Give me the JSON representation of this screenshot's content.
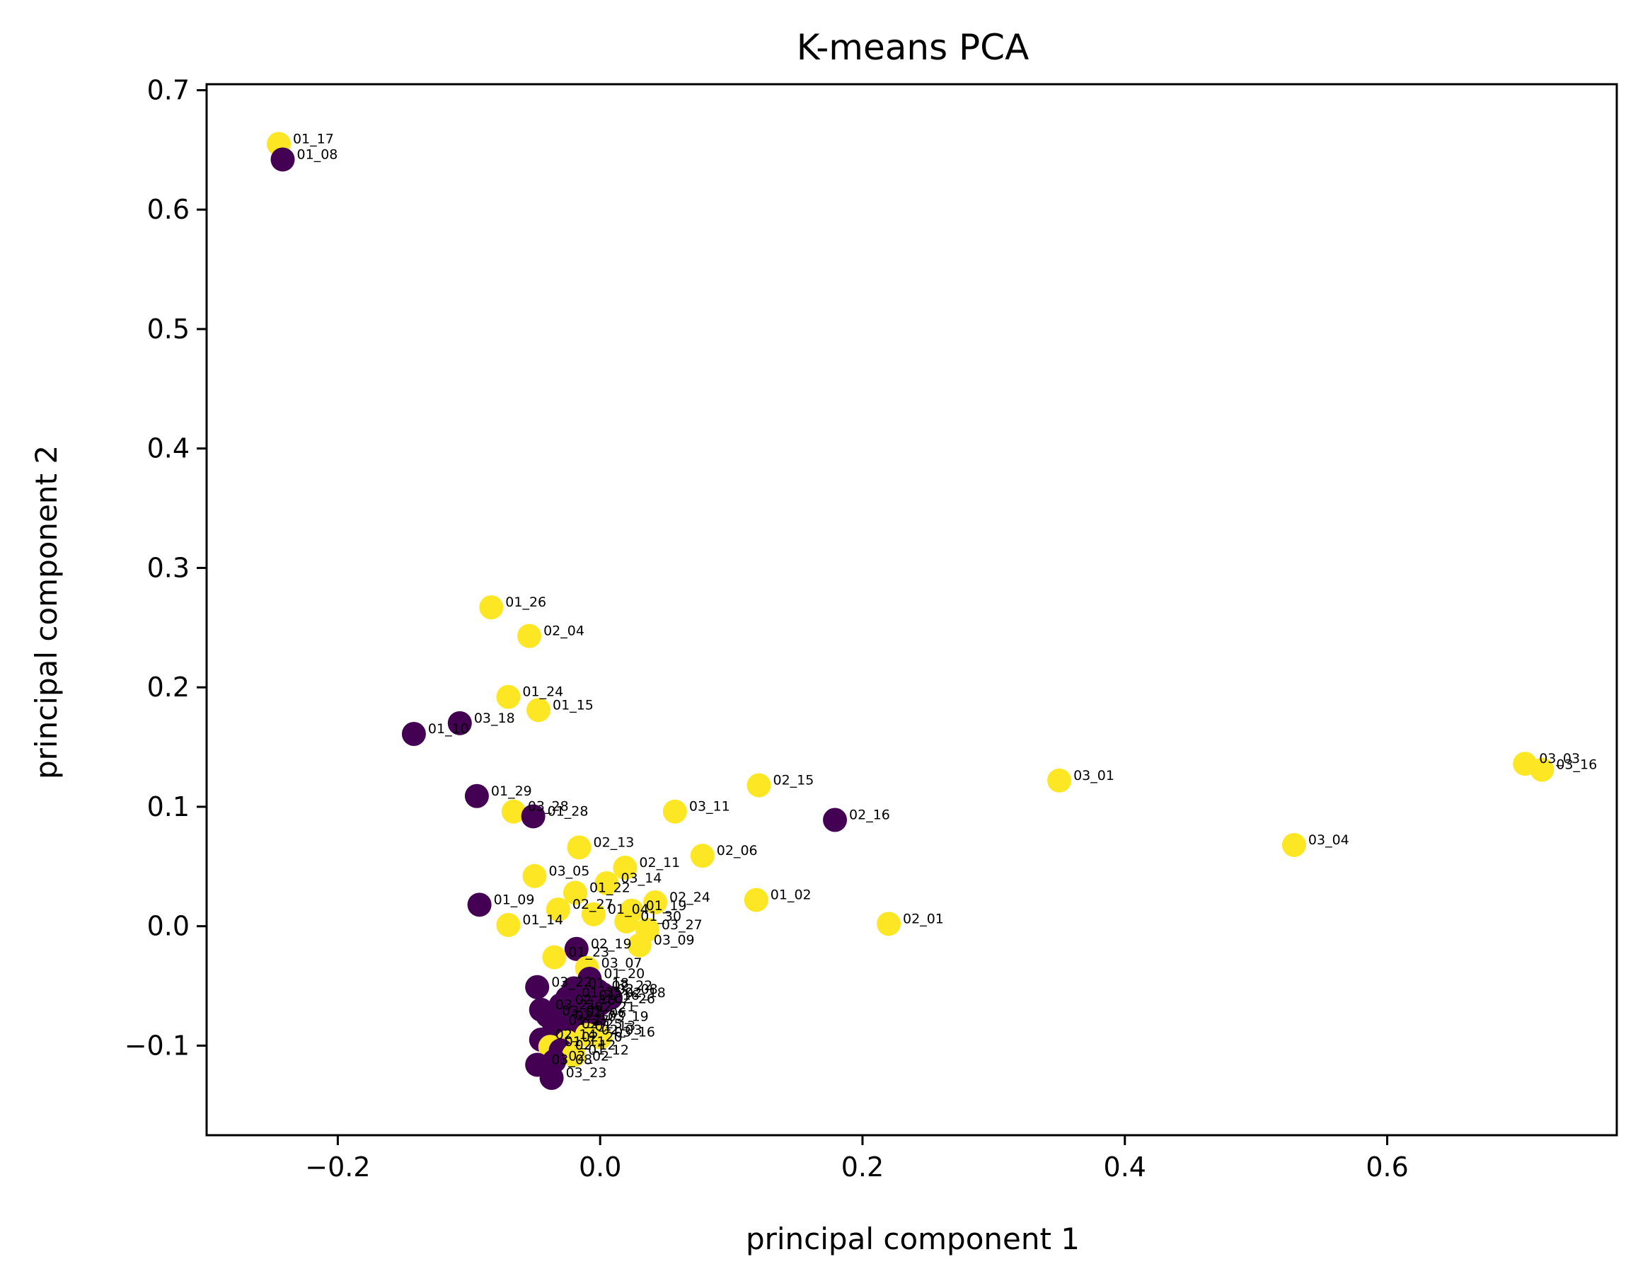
{
  "chart_data": {
    "type": "scatter",
    "title": "K-means PCA",
    "xlabel": "principal component 1",
    "ylabel": "principal component 2",
    "xlim": [
      -0.3,
      0.775
    ],
    "ylim": [
      -0.175,
      0.705
    ],
    "xticks": [
      -0.2,
      0.0,
      0.2,
      0.4,
      0.6
    ],
    "xtick_labels": [
      "−0.2",
      "0.0",
      "0.2",
      "0.4",
      "0.6"
    ],
    "yticks": [
      -0.1,
      0.0,
      0.1,
      0.2,
      0.3,
      0.4,
      0.5,
      0.6,
      0.7
    ],
    "ytick_labels": [
      "−0.1",
      "0.0",
      "0.1",
      "0.2",
      "0.3",
      "0.4",
      "0.5",
      "0.6",
      "0.7"
    ],
    "grid": false,
    "legend": "none",
    "cluster_colors": {
      "0": "#440154",
      "1": "#fde725"
    },
    "points": [
      {
        "label": "01_17",
        "x": -0.245,
        "y": 0.655,
        "cluster": 1
      },
      {
        "label": "01_08",
        "x": -0.242,
        "y": 0.642,
        "cluster": 0
      },
      {
        "label": "01_26",
        "x": -0.083,
        "y": 0.267,
        "cluster": 1
      },
      {
        "label": "02_04",
        "x": -0.054,
        "y": 0.243,
        "cluster": 1
      },
      {
        "label": "01_24",
        "x": -0.07,
        "y": 0.192,
        "cluster": 1
      },
      {
        "label": "01_15",
        "x": -0.047,
        "y": 0.181,
        "cluster": 1
      },
      {
        "label": "03_18",
        "x": -0.107,
        "y": 0.17,
        "cluster": 0
      },
      {
        "label": "01_10",
        "x": -0.142,
        "y": 0.161,
        "cluster": 0
      },
      {
        "label": "01_29",
        "x": -0.094,
        "y": 0.109,
        "cluster": 0
      },
      {
        "label": "03_28",
        "x": -0.066,
        "y": 0.096,
        "cluster": 1
      },
      {
        "label": "01_28",
        "x": -0.051,
        "y": 0.092,
        "cluster": 0
      },
      {
        "label": "02_15",
        "x": 0.121,
        "y": 0.118,
        "cluster": 1
      },
      {
        "label": "03_11",
        "x": 0.057,
        "y": 0.096,
        "cluster": 1
      },
      {
        "label": "02_16",
        "x": 0.179,
        "y": 0.089,
        "cluster": 0
      },
      {
        "label": "03_01",
        "x": 0.35,
        "y": 0.122,
        "cluster": 1
      },
      {
        "label": "03_03",
        "x": 0.705,
        "y": 0.136,
        "cluster": 1
      },
      {
        "label": "03_16",
        "x": 0.718,
        "y": 0.131,
        "cluster": 1
      },
      {
        "label": "03_04",
        "x": 0.529,
        "y": 0.068,
        "cluster": 1
      },
      {
        "label": "02_13",
        "x": -0.016,
        "y": 0.066,
        "cluster": 1
      },
      {
        "label": "02_06",
        "x": 0.078,
        "y": 0.059,
        "cluster": 1
      },
      {
        "label": "02_11",
        "x": 0.019,
        "y": 0.049,
        "cluster": 1
      },
      {
        "label": "03_05",
        "x": -0.05,
        "y": 0.042,
        "cluster": 1
      },
      {
        "label": "03_14",
        "x": 0.005,
        "y": 0.036,
        "cluster": 1
      },
      {
        "label": "01_22",
        "x": -0.019,
        "y": 0.028,
        "cluster": 1
      },
      {
        "label": "01_02",
        "x": 0.119,
        "y": 0.022,
        "cluster": 1
      },
      {
        "label": "02_24",
        "x": 0.042,
        "y": 0.02,
        "cluster": 1
      },
      {
        "label": "01_09",
        "x": -0.092,
        "y": 0.018,
        "cluster": 0
      },
      {
        "label": "02_27",
        "x": -0.032,
        "y": 0.014,
        "cluster": 1
      },
      {
        "label": "01_19",
        "x": 0.024,
        "y": 0.013,
        "cluster": 1
      },
      {
        "label": "01_04",
        "x": -0.005,
        "y": 0.01,
        "cluster": 1
      },
      {
        "label": "01_30",
        "x": 0.02,
        "y": 0.004,
        "cluster": 1
      },
      {
        "label": "02_01",
        "x": 0.22,
        "y": 0.002,
        "cluster": 1
      },
      {
        "label": "01_14",
        "x": -0.07,
        "y": 0.001,
        "cluster": 1
      },
      {
        "label": "03_27",
        "x": 0.036,
        "y": -0.003,
        "cluster": 1
      },
      {
        "label": "03_09",
        "x": 0.03,
        "y": -0.016,
        "cluster": 1
      },
      {
        "label": "02_19",
        "x": -0.018,
        "y": -0.019,
        "cluster": 0
      },
      {
        "label": "01_23",
        "x": -0.035,
        "y": -0.026,
        "cluster": 1
      },
      {
        "label": "03_07",
        "x": -0.01,
        "y": -0.035,
        "cluster": 1
      },
      {
        "label": "01_20",
        "x": -0.008,
        "y": -0.044,
        "cluster": 0
      },
      {
        "label": "03_22",
        "x": -0.048,
        "y": -0.051,
        "cluster": 0
      },
      {
        "label": "01_18",
        "x": -0.02,
        "y": -0.052,
        "cluster": 0
      },
      {
        "label": "02_22",
        "x": -0.002,
        "y": -0.054,
        "cluster": 0
      },
      {
        "label": "02_08",
        "x": 0.002,
        "y": -0.057,
        "cluster": 0
      },
      {
        "label": "02_18",
        "x": 0.008,
        "y": -0.06,
        "cluster": 0
      },
      {
        "label": "01_25",
        "x": -0.025,
        "y": -0.06,
        "cluster": 0
      },
      {
        "label": "01_16",
        "x": -0.012,
        "y": -0.062,
        "cluster": 0
      },
      {
        "label": "02_26",
        "x": 0.0,
        "y": -0.065,
        "cluster": 0
      },
      {
        "label": "02_10",
        "x": -0.03,
        "y": -0.066,
        "cluster": 0
      },
      {
        "label": "03_21",
        "x": -0.045,
        "y": -0.07,
        "cluster": 0
      },
      {
        "label": "02_21",
        "x": -0.015,
        "y": -0.072,
        "cluster": 0
      },
      {
        "label": "03_02",
        "x": -0.04,
        "y": -0.075,
        "cluster": 0
      },
      {
        "label": "01_06",
        "x": -0.022,
        "y": -0.077,
        "cluster": 0
      },
      {
        "label": "02_17",
        "x": -0.03,
        "y": -0.079,
        "cluster": 0
      },
      {
        "label": "03_19",
        "x": -0.005,
        "y": -0.08,
        "cluster": 0
      },
      {
        "label": "01_27",
        "x": -0.035,
        "y": -0.083,
        "cluster": 0
      },
      {
        "label": "02_25",
        "x": -0.025,
        "y": -0.086,
        "cluster": 0
      },
      {
        "label": "01_13",
        "x": -0.015,
        "y": -0.088,
        "cluster": 0
      },
      {
        "label": "02_03",
        "x": -0.01,
        "y": -0.091,
        "cluster": 1
      },
      {
        "label": "02_14",
        "x": -0.045,
        "y": -0.095,
        "cluster": 0
      },
      {
        "label": "03_16",
        "x": 0.0,
        "y": -0.093,
        "cluster": 1
      },
      {
        "label": "02_20",
        "x": -0.025,
        "y": -0.097,
        "cluster": 1
      },
      {
        "label": "01_11",
        "x": -0.038,
        "y": -0.101,
        "cluster": 1
      },
      {
        "label": "02_12",
        "x": -0.03,
        "y": -0.104,
        "cluster": 0
      },
      {
        "label": "01_12",
        "x": -0.02,
        "y": -0.108,
        "cluster": 1
      },
      {
        "label": "03_08",
        "x": -0.048,
        "y": -0.116,
        "cluster": 0
      },
      {
        "label": "02_02",
        "x": -0.035,
        "y": -0.113,
        "cluster": 0
      },
      {
        "label": "03_23",
        "x": -0.037,
        "y": -0.127,
        "cluster": 0
      }
    ]
  }
}
